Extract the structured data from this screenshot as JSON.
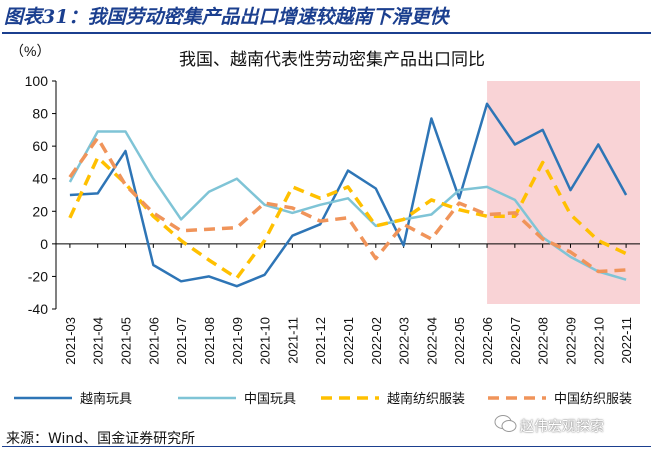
{
  "figure": {
    "title": "图表31：我国劳动密集产品出口增速较越南下滑更快",
    "source": "来源：Wind、国金证券研究所",
    "watermark": "赵伟宏观探索"
  },
  "chart_data": {
    "type": "line",
    "title": "我国、越南代表性劳动密集产品出口同比",
    "unit_label": "（%）",
    "ylim": [
      -40,
      100
    ],
    "yticks": [
      -40,
      -20,
      0,
      20,
      40,
      60,
      80,
      100
    ],
    "categories": [
      "2021-03",
      "2021-04",
      "2021-05",
      "2021-06",
      "2021-07",
      "2021-08",
      "2021-09",
      "2021-10",
      "2021-11",
      "2021-12",
      "2022-01",
      "2022-02",
      "2022-03",
      "2022-04",
      "2022-05",
      "2022-06",
      "2022-07",
      "2022-08",
      "2022-09",
      "2022-10",
      "2022-11"
    ],
    "highlight_range": [
      "2022-06",
      "2022-11"
    ],
    "highlight_color": "#f9d3d6",
    "series": [
      {
        "name": "越南玩具",
        "color": "#2e75b6",
        "style": "solid",
        "values": [
          30,
          31,
          57,
          -13,
          -23,
          -20,
          -26,
          -19,
          5,
          12,
          45,
          34,
          -1,
          77,
          28,
          86,
          61,
          70,
          33,
          61,
          30
        ]
      },
      {
        "name": "中国玩具",
        "color": "#7fc4d6",
        "style": "solid",
        "values": [
          38,
          69,
          69,
          40,
          15,
          32,
          40,
          24,
          19,
          24,
          28,
          11,
          15,
          18,
          33,
          35,
          27,
          4,
          -8,
          -17,
          -22
        ]
      },
      {
        "name": "越南纺织服装",
        "color": "#ffc000",
        "style": "dashed",
        "values": [
          16,
          53,
          37,
          17,
          2,
          -10,
          -21,
          2,
          35,
          28,
          35,
          11,
          15,
          27,
          21,
          17,
          17,
          50,
          18,
          2,
          -6
        ]
      },
      {
        "name": "中国纺织服装",
        "color": "#f0945a",
        "style": "dashed",
        "values": [
          41,
          65,
          36,
          19,
          8,
          9,
          10,
          25,
          22,
          14,
          16,
          -9,
          12,
          3,
          25,
          18,
          19,
          3,
          -5,
          -17,
          -16
        ]
      }
    ]
  }
}
